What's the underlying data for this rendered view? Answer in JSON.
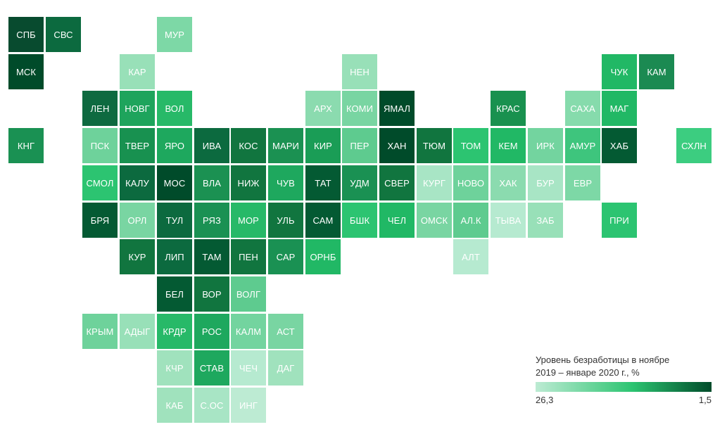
{
  "legend": {
    "title": "Уровень безработицы в ноябре\n2019 – январе 2020 г., %",
    "min_label": "26,3",
    "max_label": "1,5"
  },
  "regions": [
    {
      "label": "СПБ",
      "col": 0,
      "row": 0,
      "color": "#084b2f"
    },
    {
      "label": "СВС",
      "col": 1,
      "row": 0,
      "color": "#0c6a3f"
    },
    {
      "label": "МУР",
      "col": 4,
      "row": 0,
      "color": "#7dd8a6"
    },
    {
      "label": "МСК",
      "col": 0,
      "row": 1,
      "color": "#004b2a"
    },
    {
      "label": "КАР",
      "col": 3,
      "row": 1,
      "color": "#98e0b8"
    },
    {
      "label": "НЕН",
      "col": 9,
      "row": 1,
      "color": "#98e0b8"
    },
    {
      "label": "ЧУК",
      "col": 16,
      "row": 1,
      "color": "#21b865"
    },
    {
      "label": "КАМ",
      "col": 17,
      "row": 1,
      "color": "#1b8a52"
    },
    {
      "label": "ЛЕН",
      "col": 2,
      "row": 2,
      "color": "#0e6a40"
    },
    {
      "label": "НОВГ",
      "col": 3,
      "row": 2,
      "color": "#1ea45c"
    },
    {
      "label": "ВОЛ",
      "col": 4,
      "row": 2,
      "color": "#27b968"
    },
    {
      "label": "АРХ",
      "col": 8,
      "row": 2,
      "color": "#8bdbaf"
    },
    {
      "label": "КОМИ",
      "col": 9,
      "row": 2,
      "color": "#79d5a2"
    },
    {
      "label": "ЯМАЛ",
      "col": 10,
      "row": 2,
      "color": "#004b2a"
    },
    {
      "label": "КРАС",
      "col": 13,
      "row": 2,
      "color": "#19914f"
    },
    {
      "label": "САХА",
      "col": 15,
      "row": 2,
      "color": "#86dbac"
    },
    {
      "label": "МАГ",
      "col": 16,
      "row": 2,
      "color": "#21b865"
    },
    {
      "label": "КНГ",
      "col": 0,
      "row": 3,
      "color": "#1a9153"
    },
    {
      "label": "ПСК",
      "col": 2,
      "row": 3,
      "color": "#6ed29b"
    },
    {
      "label": "ТВЕР",
      "col": 3,
      "row": 3,
      "color": "#189150"
    },
    {
      "label": "ЯРО",
      "col": 4,
      "row": 3,
      "color": "#1ea85e"
    },
    {
      "label": "ИВА",
      "col": 5,
      "row": 3,
      "color": "#0c6a3f"
    },
    {
      "label": "КОС",
      "col": 6,
      "row": 3,
      "color": "#11753f"
    },
    {
      "label": "МАРИ",
      "col": 7,
      "row": 3,
      "color": "#1b9152"
    },
    {
      "label": "КИР",
      "col": 8,
      "row": 3,
      "color": "#1a9d56"
    },
    {
      "label": "ПЕР",
      "col": 9,
      "row": 3,
      "color": "#5ecb8f"
    },
    {
      "label": "ХАН",
      "col": 10,
      "row": 3,
      "color": "#004b2a"
    },
    {
      "label": "ТЮМ",
      "col": 11,
      "row": 3,
      "color": "#11753f"
    },
    {
      "label": "ТОМ",
      "col": 12,
      "row": 3,
      "color": "#2cc471"
    },
    {
      "label": "КЕМ",
      "col": 13,
      "row": 3,
      "color": "#21b865"
    },
    {
      "label": "ИРК",
      "col": 14,
      "row": 3,
      "color": "#73d49f"
    },
    {
      "label": "АМУР",
      "col": 15,
      "row": 3,
      "color": "#3ec57d"
    },
    {
      "label": "ХАБ",
      "col": 16,
      "row": 3,
      "color": "#045a33"
    },
    {
      "label": "СХЛН",
      "col": 18,
      "row": 3,
      "color": "#3ccd80"
    },
    {
      "label": "СМОЛ",
      "col": 2,
      "row": 4,
      "color": "#2cc471"
    },
    {
      "label": "КАЛУ",
      "col": 3,
      "row": 4,
      "color": "#0c6a3f"
    },
    {
      "label": "МОС",
      "col": 4,
      "row": 4,
      "color": "#004b2a"
    },
    {
      "label": "ВЛА",
      "col": 5,
      "row": 4,
      "color": "#1b9152"
    },
    {
      "label": "НИЖ",
      "col": 6,
      "row": 4,
      "color": "#11753f"
    },
    {
      "label": "ЧУВ",
      "col": 7,
      "row": 4,
      "color": "#1ea85e"
    },
    {
      "label": "ТАТ",
      "col": 8,
      "row": 4,
      "color": "#045a33"
    },
    {
      "label": "УДМ",
      "col": 9,
      "row": 4,
      "color": "#1a9153"
    },
    {
      "label": "СВЕР",
      "col": 10,
      "row": 4,
      "color": "#11753f"
    },
    {
      "label": "КУРГ",
      "col": 11,
      "row": 4,
      "color": "#a8e5c5"
    },
    {
      "label": "НОВО",
      "col": 12,
      "row": 4,
      "color": "#6ed29b"
    },
    {
      "label": "ХАК",
      "col": 13,
      "row": 4,
      "color": "#8bdbaf"
    },
    {
      "label": "БУР",
      "col": 14,
      "row": 4,
      "color": "#a8e5c5"
    },
    {
      "label": "ЕВР",
      "col": 15,
      "row": 4,
      "color": "#7dd8a6"
    },
    {
      "label": "БРЯ",
      "col": 2,
      "row": 5,
      "color": "#045a33"
    },
    {
      "label": "ОРЛ",
      "col": 3,
      "row": 5,
      "color": "#79d5a2"
    },
    {
      "label": "ТУЛ",
      "col": 4,
      "row": 5,
      "color": "#0c6a3f"
    },
    {
      "label": "РЯЗ",
      "col": 5,
      "row": 5,
      "color": "#1a9153"
    },
    {
      "label": "МОР",
      "col": 6,
      "row": 5,
      "color": "#27b968"
    },
    {
      "label": "УЛЬ",
      "col": 7,
      "row": 5,
      "color": "#11753f"
    },
    {
      "label": "САМ",
      "col": 8,
      "row": 5,
      "color": "#045a33"
    },
    {
      "label": "БШК",
      "col": 9,
      "row": 5,
      "color": "#2cc471"
    },
    {
      "label": "ЧЕЛ",
      "col": 10,
      "row": 5,
      "color": "#21b865"
    },
    {
      "label": "ОМСК",
      "col": 11,
      "row": 5,
      "color": "#79d5a2"
    },
    {
      "label": "АЛ.К",
      "col": 12,
      "row": 5,
      "color": "#5ecb8f"
    },
    {
      "label": "ТЫВА",
      "col": 13,
      "row": 5,
      "color": "#b6ead0"
    },
    {
      "label": "ЗАБ",
      "col": 14,
      "row": 5,
      "color": "#98e0b8"
    },
    {
      "label": "ПРИ",
      "col": 16,
      "row": 5,
      "color": "#2cc471"
    },
    {
      "label": "КУР",
      "col": 3,
      "row": 6,
      "color": "#11753f"
    },
    {
      "label": "ЛИП",
      "col": 4,
      "row": 6,
      "color": "#0c6a3f"
    },
    {
      "label": "ТАМ",
      "col": 5,
      "row": 6,
      "color": "#045a33"
    },
    {
      "label": "ПЕН",
      "col": 6,
      "row": 6,
      "color": "#11753f"
    },
    {
      "label": "САР",
      "col": 7,
      "row": 6,
      "color": "#1a9153"
    },
    {
      "label": "ОРНБ",
      "col": 8,
      "row": 6,
      "color": "#21b865"
    },
    {
      "label": "АЛТ",
      "col": 12,
      "row": 6,
      "color": "#b6ead0"
    },
    {
      "label": "БЕЛ",
      "col": 4,
      "row": 7,
      "color": "#045a33"
    },
    {
      "label": "ВОР",
      "col": 5,
      "row": 7,
      "color": "#11753f"
    },
    {
      "label": "ВОЛГ",
      "col": 6,
      "row": 7,
      "color": "#5ecb8f"
    },
    {
      "label": "КРЫМ",
      "col": 2,
      "row": 8,
      "color": "#6ed29b"
    },
    {
      "label": "АДЫГ",
      "col": 3,
      "row": 8,
      "color": "#98e0b8"
    },
    {
      "label": "КРДР",
      "col": 4,
      "row": 8,
      "color": "#27b968"
    },
    {
      "label": "РОС",
      "col": 5,
      "row": 8,
      "color": "#1ea85e"
    },
    {
      "label": "КАЛМ",
      "col": 6,
      "row": 8,
      "color": "#73d49f"
    },
    {
      "label": "АСТ",
      "col": 7,
      "row": 8,
      "color": "#79d5a2"
    },
    {
      "label": "КЧР",
      "col": 4,
      "row": 9,
      "color": "#a0e2bd"
    },
    {
      "label": "СТАВ",
      "col": 5,
      "row": 9,
      "color": "#1ea85e"
    },
    {
      "label": "ЧЕЧ",
      "col": 6,
      "row": 9,
      "color": "#b6ead0"
    },
    {
      "label": "ДАГ",
      "col": 7,
      "row": 9,
      "color": "#a0e2bd"
    },
    {
      "label": "КАБ",
      "col": 4,
      "row": 10,
      "color": "#a0e2bd"
    },
    {
      "label": "С.ОС",
      "col": 5,
      "row": 10,
      "color": "#a8e5c5"
    },
    {
      "label": "ИНГ",
      "col": 6,
      "row": 10,
      "color": "#bdebd3"
    }
  ]
}
